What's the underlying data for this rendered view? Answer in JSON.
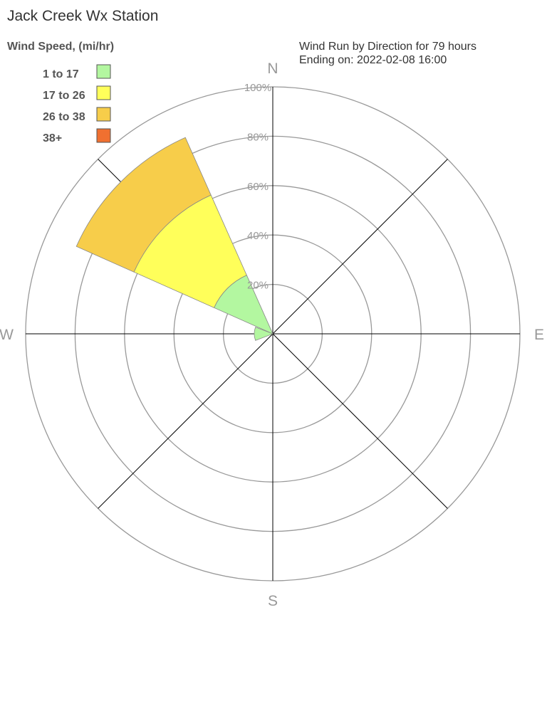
{
  "chart_data": {
    "type": "windrose",
    "title": "Jack Creek Wx Station",
    "legend_title": "Wind Speed, (mi/hr)",
    "subtitle": [
      "Wind Run by Direction for 79 hours",
      "Ending on: 2022-02-08 16:00"
    ],
    "categories": [
      "N",
      null,
      "E",
      null,
      "S",
      null,
      "W",
      null
    ],
    "series": [
      {
        "name": "1 to 17",
        "color": "#b3f7a0",
        "values": [
          0,
          0,
          0,
          0,
          0,
          0,
          7.5,
          26
        ]
      },
      {
        "name": "17 to 26",
        "color": "#ffff5a",
        "values": [
          0,
          0,
          0,
          0,
          0,
          0,
          0,
          35.5
        ]
      },
      {
        "name": "26 to 38",
        "color": "#f7cd4a",
        "values": [
          0,
          0,
          0,
          0,
          0,
          0,
          0,
          25.5
        ]
      },
      {
        "name": "38+",
        "color": "#f07030",
        "values": [
          0,
          0,
          0,
          0,
          0,
          0,
          0,
          0
        ]
      }
    ],
    "rlim": [
      0,
      100
    ],
    "rticks": [
      {
        "value": 20,
        "label": "20%"
      },
      {
        "value": 40,
        "label": "40%"
      },
      {
        "value": 60,
        "label": "60%"
      },
      {
        "value": 80,
        "label": "80%"
      },
      {
        "value": 100,
        "label": "100%"
      }
    ]
  }
}
